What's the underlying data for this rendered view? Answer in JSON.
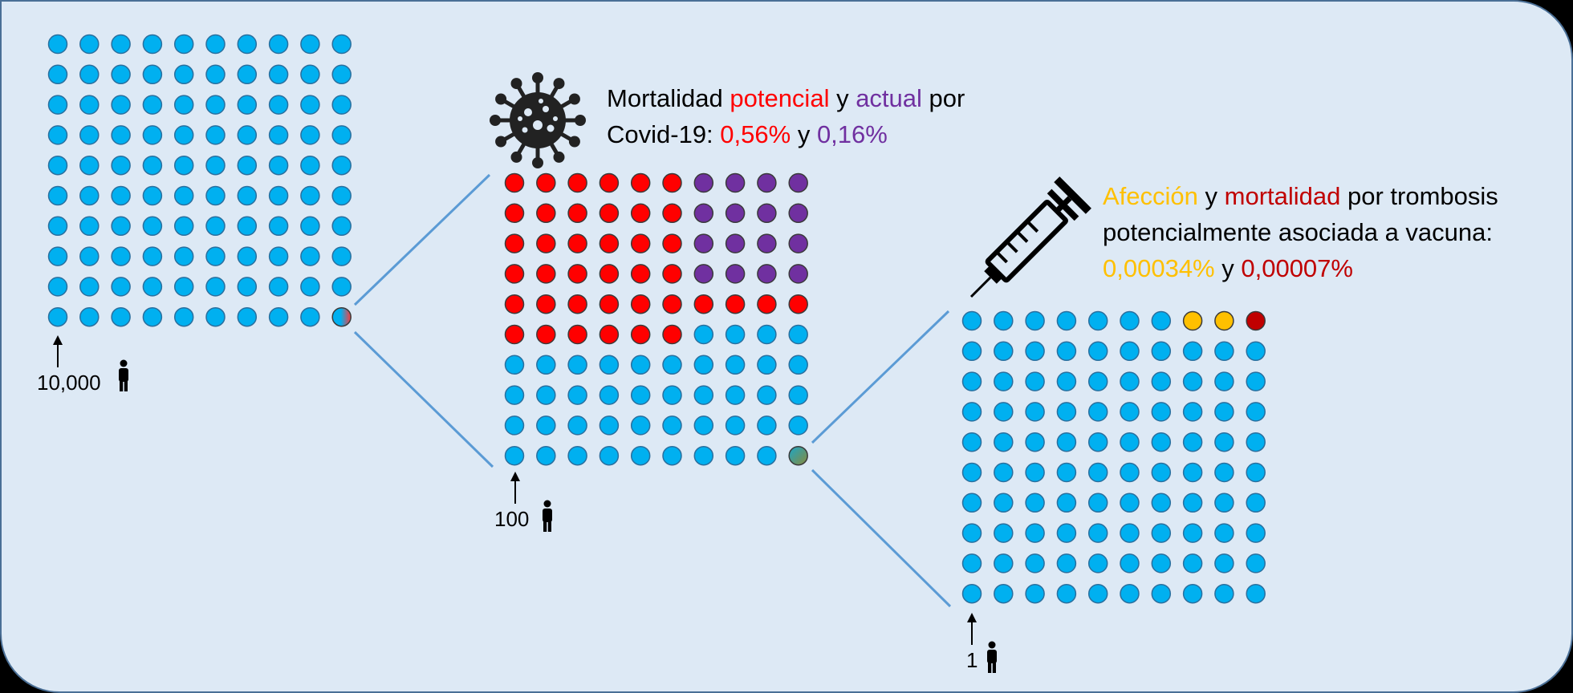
{
  "colors": {
    "background": "#dde9f5",
    "border": "#4a6f96",
    "dot_blue": "#00b0f0",
    "dot_red": "#ff0000",
    "dot_purple": "#7030a0",
    "dot_yellow": "#ffc000",
    "dot_darkred": "#c00000",
    "connector": "#5b9bd5",
    "text": "#000000"
  },
  "grids": [
    {
      "id": "grid-10000",
      "count_label": "10,000",
      "rows": 10,
      "cols": 10,
      "cells": {
        "default": "blue",
        "special": [
          {
            "row": 9,
            "col": 9,
            "color": "blue-red-gradient"
          }
        ]
      }
    },
    {
      "id": "grid-100",
      "count_label": "100",
      "rows": 10,
      "cols": 10,
      "cells": {
        "default": "blue",
        "row_fills": [
          {
            "row": 0,
            "red": 6,
            "purple": 4
          },
          {
            "row": 1,
            "red": 6,
            "purple": 4
          },
          {
            "row": 2,
            "red": 6,
            "purple": 4
          },
          {
            "row": 3,
            "red": 6,
            "purple": 4
          },
          {
            "row": 4,
            "red": 10,
            "purple": 0
          },
          {
            "row": 5,
            "red": 6,
            "purple": 0
          }
        ],
        "special": [
          {
            "row": 9,
            "col": 9,
            "color": "blue-olive-gradient"
          }
        ]
      }
    },
    {
      "id": "grid-1",
      "count_label": "1",
      "rows": 10,
      "cols": 10,
      "cells": {
        "default": "blue",
        "special": [
          {
            "row": 0,
            "col": 7,
            "color": "yellow"
          },
          {
            "row": 0,
            "col": 8,
            "color": "yellow"
          },
          {
            "row": 0,
            "col": 9,
            "color": "darkred"
          }
        ]
      }
    }
  ],
  "covid_caption": {
    "line1": {
      "a": "Mortalidad ",
      "b": "potencial",
      "c": " y ",
      "d": "actual",
      "e": " por"
    },
    "line2": {
      "a": "Covid-19: ",
      "b": "0,56%",
      "c": " y ",
      "d": "0,16%"
    }
  },
  "vaccine_caption": {
    "line1": {
      "a": "Afección",
      "b": " y ",
      "c": "mortalidad",
      "d": " por trombosis"
    },
    "line2": "potencialmente asociada a vacuna:",
    "line3": {
      "a": "0,00034%",
      "b": " y ",
      "c": "0,00007%"
    }
  },
  "icons": [
    "virus-icon",
    "syringe-icon",
    "person-icon",
    "arrow-up-icon"
  ]
}
